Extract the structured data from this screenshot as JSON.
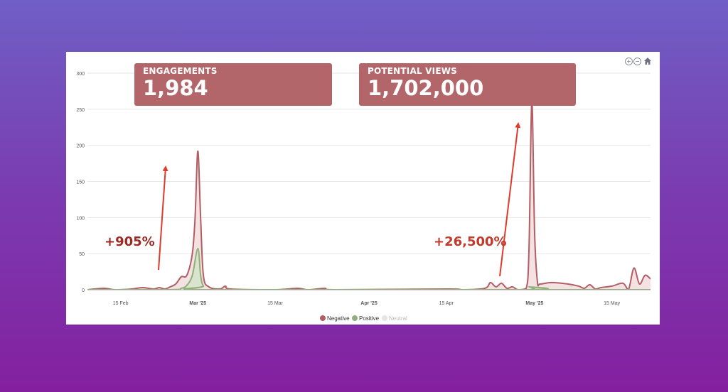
{
  "kpis": {
    "engagements": {
      "label": "ENGAGEMENTS",
      "value": "1,984"
    },
    "potential_views": {
      "label": "POTENTIAL VIEWS",
      "value": "1,702,000"
    }
  },
  "annotations": [
    {
      "text": "+905%",
      "color": "#9b2a24"
    },
    {
      "text": "+26,500%",
      "color": "#c0392b"
    }
  ],
  "toolbar": {
    "zoom_in_icon": "zoom-in-icon",
    "zoom_out_icon": "zoom-out-icon",
    "home_icon": "home-icon"
  },
  "chart_data": {
    "type": "area",
    "title": "",
    "xlabel": "",
    "ylabel": "",
    "ylim": [
      0,
      300
    ],
    "yticks": [
      0,
      50,
      100,
      150,
      200,
      250,
      300
    ],
    "xlim": [
      "2025-02-09",
      "2025-05-22"
    ],
    "xticks": [
      {
        "label": "15 Feb",
        "date": "2025-02-15",
        "bold": false
      },
      {
        "label": "Mar '25",
        "date": "2025-03-01",
        "bold": true
      },
      {
        "label": "15 Mar",
        "date": "2025-03-15",
        "bold": false
      },
      {
        "label": "Apr '25",
        "date": "2025-04-01",
        "bold": true
      },
      {
        "label": "15 Apr",
        "date": "2025-04-15",
        "bold": false
      },
      {
        "label": "May '25",
        "date": "2025-05-01",
        "bold": true
      },
      {
        "label": "15 May",
        "date": "2025-05-15",
        "bold": false
      }
    ],
    "grid": true,
    "legend_position": "bottom-center",
    "series": [
      {
        "name": "Negative",
        "color": "#b35d65",
        "fill": "#f2dddd",
        "points": [
          [
            "2025-02-09",
            0
          ],
          [
            "2025-02-12",
            2
          ],
          [
            "2025-02-14",
            0
          ],
          [
            "2025-02-17",
            1
          ],
          [
            "2025-02-19",
            3
          ],
          [
            "2025-02-21",
            1
          ],
          [
            "2025-02-22",
            3
          ],
          [
            "2025-02-23",
            1
          ],
          [
            "2025-02-24",
            4
          ],
          [
            "2025-02-25",
            8
          ],
          [
            "2025-02-26",
            18
          ],
          [
            "2025-02-27",
            20
          ],
          [
            "2025-02-28",
            50
          ],
          [
            "2025-02-28T12:00",
            100
          ],
          [
            "2025-03-01",
            192
          ],
          [
            "2025-03-01T12:00",
            100
          ],
          [
            "2025-03-02",
            20
          ],
          [
            "2025-03-03",
            4
          ],
          [
            "2025-03-05",
            1
          ],
          [
            "2025-03-06",
            5
          ],
          [
            "2025-03-07",
            1
          ],
          [
            "2025-03-15",
            0
          ],
          [
            "2025-03-19",
            2
          ],
          [
            "2025-03-21",
            0
          ],
          [
            "2025-03-24",
            2
          ],
          [
            "2025-03-26",
            0
          ],
          [
            "2025-04-15",
            1
          ],
          [
            "2025-04-18",
            0
          ],
          [
            "2025-04-22",
            2
          ],
          [
            "2025-04-23",
            10
          ],
          [
            "2025-04-24",
            4
          ],
          [
            "2025-04-25",
            9
          ],
          [
            "2025-04-26",
            2
          ],
          [
            "2025-04-27",
            4
          ],
          [
            "2025-04-28",
            0
          ],
          [
            "2025-04-29T12:00",
            2
          ],
          [
            "2025-04-30",
            60
          ],
          [
            "2025-04-30T12:00",
            262
          ],
          [
            "2025-05-01",
            80
          ],
          [
            "2025-05-01T12:00",
            12
          ],
          [
            "2025-05-02",
            8
          ],
          [
            "2025-05-04",
            10
          ],
          [
            "2025-05-07",
            8
          ],
          [
            "2025-05-09",
            5
          ],
          [
            "2025-05-10",
            2
          ],
          [
            "2025-05-11",
            7
          ],
          [
            "2025-05-12",
            1
          ],
          [
            "2025-05-13",
            3
          ],
          [
            "2025-05-15",
            5
          ],
          [
            "2025-05-17",
            9
          ],
          [
            "2025-05-18",
            0
          ],
          [
            "2025-05-19",
            30
          ],
          [
            "2025-05-20",
            8
          ],
          [
            "2025-05-21",
            20
          ],
          [
            "2025-05-22",
            15
          ]
        ]
      },
      {
        "name": "Positive",
        "color": "#8fb07a",
        "fill": "#d5e4c8",
        "points": [
          [
            "2025-02-09",
            0
          ],
          [
            "2025-02-24",
            0
          ],
          [
            "2025-02-26",
            2
          ],
          [
            "2025-02-27",
            6
          ],
          [
            "2025-02-28",
            20
          ],
          [
            "2025-03-01",
            57
          ],
          [
            "2025-03-01T12:00",
            20
          ],
          [
            "2025-03-02",
            5
          ],
          [
            "2025-03-03",
            0
          ],
          [
            "2025-04-29",
            0
          ],
          [
            "2025-04-30",
            4
          ],
          [
            "2025-05-01",
            1
          ],
          [
            "2025-05-02",
            0
          ],
          [
            "2025-05-22",
            0
          ]
        ]
      },
      {
        "name": "Neutral",
        "color": "#e5e5e5",
        "fill": "#f2f2f2",
        "points": [
          [
            "2025-02-09",
            0
          ],
          [
            "2025-05-22",
            0
          ]
        ]
      }
    ]
  }
}
